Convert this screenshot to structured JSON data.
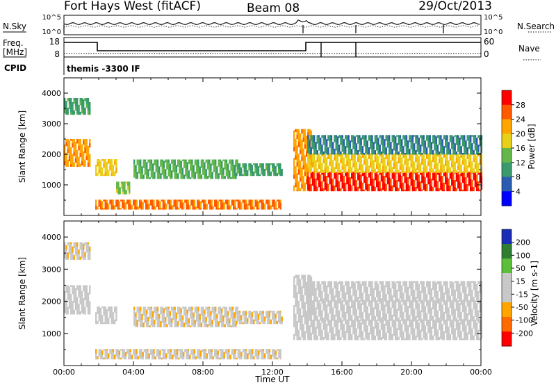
{
  "header": {
    "station": "Fort Hays West (fitACF)",
    "beam": "Beam 08",
    "date": "29/Oct/2013"
  },
  "noise_panel": {
    "left_label": "N.Sky",
    "right_label": "N.Search",
    "left_ticks": [
      "10^5",
      "10^0"
    ],
    "right_ticks": [
      "10^5",
      "10^0"
    ]
  },
  "freq_panel": {
    "left_label_line1": "Freq.",
    "left_label_line2": "[MHz]",
    "left_ticks": [
      "18",
      "8"
    ],
    "right_label": "Nave",
    "right_ticks": [
      "60",
      "0"
    ],
    "cpid_label": "CPID",
    "cpid_text": "themis -3300 IF"
  },
  "colors": {
    "power": [
      "#0000ff",
      "#2a5db0",
      "#3a9a6e",
      "#64b84a",
      "#e8d01a",
      "#ffa500",
      "#ff5a00",
      "#ff0000"
    ],
    "velocity": [
      "#1a2db4",
      "#2e7d32",
      "#5cbf3a",
      "#c8c8c8",
      "#c8c8c8",
      "#ffa500",
      "#ff6a00",
      "#ff0000"
    ]
  },
  "chart_data": [
    {
      "type": "heatmap",
      "name": "power",
      "xlabel": "Time UT",
      "ylabel": "Slant Range [km]",
      "xlim": [
        "00:00",
        "24:00"
      ],
      "ylim": [
        0,
        4500
      ],
      "x_ticks": [
        "00:00",
        "04:00",
        "08:00",
        "12:00",
        "16:00",
        "20:00",
        "00:00"
      ],
      "y_ticks": [
        1000,
        2000,
        3000,
        4000
      ],
      "colorbar": {
        "label": "Power [dB]",
        "ticks": [
          "28",
          "24",
          "20",
          "16",
          "12",
          "8",
          "4"
        ],
        "range": [
          0,
          32
        ]
      },
      "regions": [
        {
          "t0": 0.0,
          "t1": 1.5,
          "r0": 1600,
          "r1": 2500,
          "v": 22
        },
        {
          "t0": 0.0,
          "t1": 1.5,
          "r0": 3300,
          "r1": 3800,
          "v": 10
        },
        {
          "t0": 1.8,
          "t1": 3.0,
          "r0": 1300,
          "r1": 1800,
          "v": 18
        },
        {
          "t0": 3.0,
          "t1": 3.8,
          "r0": 700,
          "r1": 1100,
          "v": 14
        },
        {
          "t0": 4.0,
          "t1": 10.0,
          "r0": 1200,
          "r1": 1800,
          "v": 12
        },
        {
          "t0": 9.8,
          "t1": 12.5,
          "r0": 1300,
          "r1": 1700,
          "v": 10
        },
        {
          "t0": 1.8,
          "t1": 12.5,
          "r0": 200,
          "r1": 500,
          "v": 24
        },
        {
          "t0": 13.2,
          "t1": 14.2,
          "r0": 800,
          "r1": 2800,
          "v": 22
        },
        {
          "t0": 14.0,
          "t1": 24.0,
          "r0": 800,
          "r1": 1400,
          "v": 28
        },
        {
          "t0": 14.0,
          "t1": 24.0,
          "r0": 1400,
          "r1": 2000,
          "v": 18
        },
        {
          "t0": 14.0,
          "t1": 24.0,
          "r0": 2000,
          "r1": 2600,
          "v": 8
        }
      ]
    },
    {
      "type": "heatmap",
      "name": "velocity",
      "xlabel": "Time UT",
      "ylabel": "Slant Range [km]",
      "xlim": [
        "00:00",
        "24:00"
      ],
      "ylim": [
        0,
        4500
      ],
      "x_ticks": [
        "00:00",
        "04:00",
        "08:00",
        "12:00",
        "16:00",
        "20:00",
        "00:00"
      ],
      "y_ticks": [
        1000,
        2000,
        3000,
        4000
      ],
      "colorbar": {
        "label": "Velocity [m s-1]",
        "ticks": [
          "200",
          "100",
          "50",
          "15",
          "-15",
          "-50",
          "-100",
          "-200"
        ],
        "range": [
          -250,
          250
        ]
      },
      "regions": [
        {
          "t0": 0.0,
          "t1": 1.5,
          "r0": 1600,
          "r1": 2500,
          "v": 0
        },
        {
          "t0": 0.0,
          "t1": 1.5,
          "r0": 3300,
          "r1": 3800,
          "v": -60
        },
        {
          "t0": 1.8,
          "t1": 3.0,
          "r0": 1300,
          "r1": 1800,
          "v": -40
        },
        {
          "t0": 4.0,
          "t1": 10.0,
          "r0": 1200,
          "r1": 1800,
          "v": -60
        },
        {
          "t0": 9.8,
          "t1": 12.5,
          "r0": 1300,
          "r1": 1700,
          "v": -60
        },
        {
          "t0": 1.8,
          "t1": 12.5,
          "r0": 200,
          "r1": 500,
          "v": -60
        },
        {
          "t0": 13.2,
          "t1": 14.2,
          "r0": 800,
          "r1": 2800,
          "v": 40
        },
        {
          "t0": 14.0,
          "t1": 24.0,
          "r0": 800,
          "r1": 1400,
          "v": 0
        },
        {
          "t0": 14.0,
          "t1": 24.0,
          "r0": 1400,
          "r1": 2000,
          "v": 0
        },
        {
          "t0": 14.0,
          "t1": 24.0,
          "r0": 2000,
          "r1": 2600,
          "v": -40
        }
      ]
    }
  ]
}
